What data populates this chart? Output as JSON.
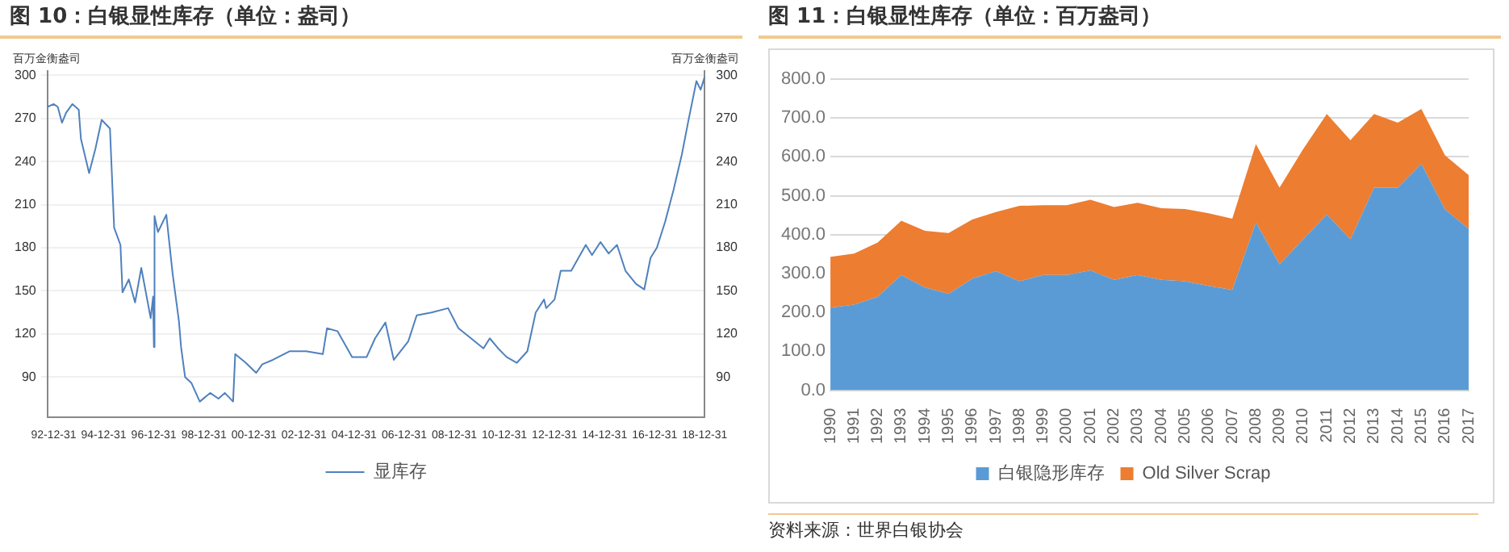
{
  "chart_data": [
    {
      "type": "line",
      "title": "图 10：白银显性库存（单位：盎司）",
      "ylabel": "百万金衡盎司",
      "y2label": "百万金衡盎司",
      "x": [
        "1992-10",
        "1993-01",
        "1993-03",
        "1993-05",
        "1993-07",
        "1993-10",
        "1994-01",
        "1994-02",
        "1994-06",
        "1994-09",
        "1994-12",
        "1995-04",
        "1995-06",
        "1995-09",
        "1995-10",
        "1996-01",
        "1996-04",
        "1996-07",
        "1996-11-15",
        "1996-12-20",
        "1997-01-01",
        "1997-01-10",
        "1997-03",
        "1997-07",
        "1997-10",
        "1998-01",
        "1998-02",
        "1998-04",
        "1998-07",
        "1998-11",
        "1999-04",
        "1999-08",
        "1999-11",
        "2000-03",
        "2000-04",
        "2000-09",
        "2001-02",
        "2001-05",
        "2001-10",
        "2002-06",
        "2003-02",
        "2003-10",
        "2003-12",
        "2004-05",
        "2004-12",
        "2005-07",
        "2005-11",
        "2006-04",
        "2006-08",
        "2007-03",
        "2007-07",
        "2008-02",
        "2008-10",
        "2009-03",
        "2009-09",
        "2010-03",
        "2010-06",
        "2010-10",
        "2011-02",
        "2011-07",
        "2011-12",
        "2012-04",
        "2012-08",
        "2012-09",
        "2013-01",
        "2013-04",
        "2013-09",
        "2014-04",
        "2014-07",
        "2014-11",
        "2015-03",
        "2015-07",
        "2015-11",
        "2016-04",
        "2016-08",
        "2016-11",
        "2017-02",
        "2017-06",
        "2017-10",
        "2018-02",
        "2018-05",
        "2018-09",
        "2018-11",
        "2018-12-31"
      ],
      "series": [
        {
          "name": "显库存",
          "color": "#4f81bd",
          "values": [
            278,
            280,
            278,
            267,
            274,
            280,
            276,
            256,
            232,
            249,
            269,
            263,
            194,
            182,
            149,
            158,
            142,
            166,
            131,
            146,
            111,
            202,
            191,
            203,
            162,
            129,
            111,
            90,
            86,
            73,
            79,
            75,
            79,
            73,
            106,
            100,
            93,
            99,
            102,
            108,
            108,
            106,
            124,
            122,
            104,
            104,
            117,
            128,
            102,
            115,
            133,
            135,
            138,
            124,
            117,
            110,
            117,
            110,
            104,
            100,
            108,
            135,
            144,
            138,
            144,
            164,
            164,
            182,
            175,
            184,
            176,
            182,
            164,
            155,
            151,
            173,
            180,
            198,
            220,
            245,
            267,
            296,
            290,
            299
          ]
        }
      ],
      "xlim": [
        "1992-09-30",
        "2018-12-31"
      ],
      "xticks": [
        {
          "value": "1992-12-31",
          "label": "92-12-31"
        },
        {
          "value": "1994-12-31",
          "label": "94-12-31"
        },
        {
          "value": "1996-12-31",
          "label": "96-12-31"
        },
        {
          "value": "1998-12-31",
          "label": "98-12-31"
        },
        {
          "value": "2000-12-31",
          "label": "00-12-31"
        },
        {
          "value": "2002-12-31",
          "label": "02-12-31"
        },
        {
          "value": "2004-12-31",
          "label": "04-12-31"
        },
        {
          "value": "2006-12-31",
          "label": "06-12-31"
        },
        {
          "value": "2008-12-31",
          "label": "08-12-31"
        },
        {
          "value": "2010-12-31",
          "label": "10-12-31"
        },
        {
          "value": "2012-12-31",
          "label": "12-12-31"
        },
        {
          "value": "2014-12-31",
          "label": "14-12-31"
        },
        {
          "value": "2016-12-31",
          "label": "16-12-31"
        },
        {
          "value": "2018-12-31",
          "label": "18-12-31"
        }
      ],
      "ylim": [
        62,
        303
      ],
      "yticks": [
        90,
        120,
        150,
        180,
        210,
        240,
        270,
        300
      ],
      "y2lim": [
        62,
        303
      ],
      "y2ticks": [
        90,
        120,
        150,
        180,
        210,
        240,
        270,
        300
      ],
      "grid": "y",
      "legend": "bottom"
    },
    {
      "type": "area",
      "stacked": true,
      "title": "图 11：白银显性库存（单位：百万盎司）",
      "categories": [
        "1990",
        "1991",
        "1992",
        "1993",
        "1994",
        "1995",
        "1996",
        "1997",
        "1998",
        "1999",
        "2000",
        "2001",
        "2002",
        "2003",
        "2004",
        "2005",
        "2006",
        "2007",
        "2008",
        "2009",
        "2010",
        "2011",
        "2012",
        "2013",
        "2014",
        "2015",
        "2016",
        "2017"
      ],
      "series": [
        {
          "name": "白银隐形库存",
          "color": "#5b9bd5",
          "values": [
            212,
            220,
            240,
            296,
            264,
            248,
            287,
            306,
            280,
            296,
            296,
            308,
            284,
            296,
            284,
            280,
            268,
            258,
            431,
            324,
            388,
            452,
            388,
            521,
            521,
            582,
            465,
            415
          ]
        },
        {
          "name": "Old Silver Scrap",
          "color": "#ed7d31",
          "values": [
            131,
            131,
            140,
            140,
            146,
            156,
            152,
            152,
            194,
            180,
            180,
            182,
            187,
            186,
            184,
            186,
            187,
            183,
            202,
            197,
            232,
            258,
            255,
            189,
            167,
            141,
            139,
            138
          ]
        }
      ],
      "ylim": [
        0,
        800
      ],
      "yticks": [
        {
          "value": 0,
          "label": "0.0"
        },
        {
          "value": 100,
          "label": "100.0"
        },
        {
          "value": 200,
          "label": "200.0"
        },
        {
          "value": 300,
          "label": "300.0"
        },
        {
          "value": 400,
          "label": "400.0"
        },
        {
          "value": 500,
          "label": "500.0"
        },
        {
          "value": 600,
          "label": "600.0"
        },
        {
          "value": 700,
          "label": "700.0"
        },
        {
          "value": 800,
          "label": "800.0"
        }
      ],
      "grid": "y",
      "legend": "bottom",
      "annotations": [
        "资料来源：世界白银协会"
      ]
    }
  ]
}
